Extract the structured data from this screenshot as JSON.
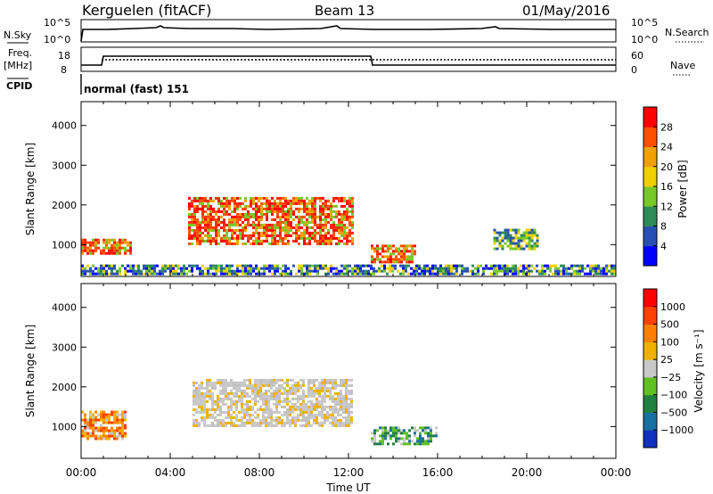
{
  "header": {
    "station": "Kerguelen (fitACF)",
    "beam": "Beam 13",
    "date": "01/May/2016"
  },
  "panels": {
    "nsky": {
      "left_label": "N.Sky",
      "right_label": "N.Search",
      "left_ticks": [
        "10^5",
        "10^0"
      ],
      "right_ticks": [
        "10^5",
        "10^0"
      ]
    },
    "freq": {
      "left_label_1": "Freq.",
      "left_label_2": "[MHz]",
      "right_label": "Nave",
      "left_ticks": [
        "18",
        "8"
      ],
      "right_ticks": [
        "60",
        "0"
      ]
    },
    "cpid": {
      "label": "CPID",
      "value": "normal (fast) 151"
    }
  },
  "chart_data": [
    {
      "type": "heatmap",
      "name": "power",
      "ylabel": "Slant Range [km]",
      "ylim": [
        200,
        4600
      ],
      "yticks": [
        1000,
        2000,
        3000,
        4000
      ],
      "xlim": [
        0,
        24
      ],
      "colorbar": {
        "label": "Power [dB]",
        "ticks": [
          "4",
          "8",
          "12",
          "16",
          "20",
          "24",
          "28"
        ],
        "colors": [
          "#0000ff",
          "#2850b4",
          "#2e8b57",
          "#78c828",
          "#f0d000",
          "#f0a000",
          "#ff5000",
          "#ff0000"
        ]
      },
      "features": [
        {
          "t": [
            0.0,
            2.2
          ],
          "range": [
            750,
            1150
          ],
          "level": "high"
        },
        {
          "t": [
            4.8,
            12.2
          ],
          "range": [
            1000,
            2200
          ],
          "level": "high"
        },
        {
          "t": [
            13.0,
            15.0
          ],
          "range": [
            550,
            1000
          ],
          "level": "high"
        },
        {
          "t": [
            0.0,
            24.0
          ],
          "range": [
            250,
            500
          ],
          "level": "low"
        },
        {
          "t": [
            18.5,
            20.5
          ],
          "range": [
            900,
            1400
          ],
          "level": "medium"
        }
      ]
    },
    {
      "type": "heatmap",
      "name": "velocity",
      "ylabel": "Slant Range [km]",
      "ylim": [
        200,
        4600
      ],
      "yticks": [
        1000,
        2000,
        3000,
        4000
      ],
      "xlim": [
        0,
        24
      ],
      "xlabel": "Time UT",
      "xticks": [
        "00:00",
        "04:00",
        "08:00",
        "12:00",
        "16:00",
        "20:00",
        "00:00"
      ],
      "colorbar": {
        "label": "Velocity [m s⁻¹]",
        "ticks": [
          "1000",
          "500",
          "100",
          "25",
          "−25",
          "−100",
          "−500",
          "−1000"
        ],
        "colors": [
          "#1030c0",
          "#1870a0",
          "#208040",
          "#60c020",
          "#c8c8c8",
          "#f0b000",
          "#ff8000",
          "#ff4000",
          "#ff0000"
        ]
      },
      "features": [
        {
          "t": [
            0.0,
            2.0
          ],
          "range": [
            700,
            1400
          ],
          "level": "negative"
        },
        {
          "t": [
            5.0,
            12.2
          ],
          "range": [
            1000,
            2200
          ],
          "level": "ground"
        },
        {
          "t": [
            13.0,
            16.0
          ],
          "range": [
            550,
            1000
          ],
          "level": "positive"
        }
      ]
    }
  ]
}
